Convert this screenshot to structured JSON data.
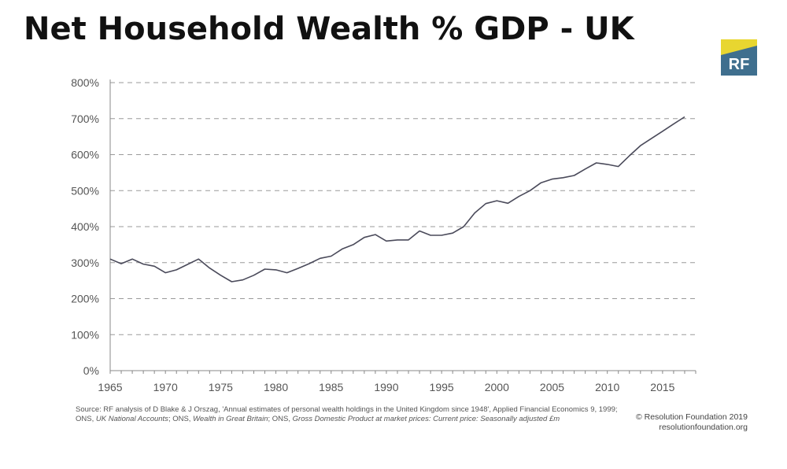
{
  "title": "Net Household Wealth % GDP - UK",
  "logo": {
    "text": "RF",
    "color_top": "#e8d630",
    "color_bottom": "#3f6f8e"
  },
  "source": {
    "prefix": "Source:  RF analysis of D Blake & J Orszag, 'Annual estimates of personal wealth holdings in the United Kingdom since 1948', Applied Financial Economics 9, 1999;",
    "line2_a": "ONS, ",
    "line2_b": "UK National Accounts",
    "line2_c": "; ONS, ",
    "line2_d": "Wealth in Great Britain",
    "line2_e": "; ONS, ",
    "line2_f": "Gross Domestic Product at market prices: Current price: Seasonally adjusted £m"
  },
  "credit": {
    "line1": "© Resolution Foundation 2019",
    "line2": "resolutionfoundation.org"
  },
  "chart_data": {
    "type": "line",
    "title": "Net Household Wealth % GDP - UK",
    "xlabel": "",
    "ylabel": "",
    "xlim": [
      1965,
      2018
    ],
    "ylim": [
      0,
      800
    ],
    "x_ticks": [
      1965,
      1970,
      1975,
      1980,
      1985,
      1990,
      1995,
      2000,
      2005,
      2010,
      2015
    ],
    "y_ticks": [
      0,
      100,
      200,
      300,
      400,
      500,
      600,
      700,
      800
    ],
    "y_tick_labels": [
      "0%",
      "100%",
      "200%",
      "300%",
      "400%",
      "500%",
      "600%",
      "700%",
      "800%"
    ],
    "grid": "horizontal dashed",
    "line_color": "#4a4a5a",
    "series": [
      {
        "x": [
          1965,
          1966,
          1967,
          1968,
          1969,
          1970,
          1971,
          1972,
          1973,
          1974,
          1975,
          1976,
          1977,
          1978,
          1979,
          1980,
          1981,
          1982,
          1983,
          1984,
          1985,
          1986,
          1987,
          1988,
          1989,
          1990,
          1991,
          1992,
          1993,
          1994,
          1995,
          1996,
          1997,
          1998,
          1999,
          2000,
          2001,
          2002,
          2003,
          2004,
          2005,
          2006,
          2007,
          2008,
          2009,
          2010,
          2011,
          2012,
          2013,
          2014,
          2015,
          2016,
          2017
        ],
        "values": [
          310,
          297,
          310,
          296,
          290,
          272,
          280,
          295,
          310,
          285,
          265,
          247,
          252,
          265,
          282,
          280,
          272,
          284,
          297,
          312,
          318,
          338,
          350,
          370,
          378,
          360,
          363,
          363,
          388,
          376,
          376,
          382,
          400,
          438,
          464,
          472,
          465,
          484,
          500,
          522,
          532,
          536,
          542,
          560,
          577,
          573,
          567,
          597,
          625,
          645,
          665,
          685,
          705
        ]
      }
    ]
  }
}
